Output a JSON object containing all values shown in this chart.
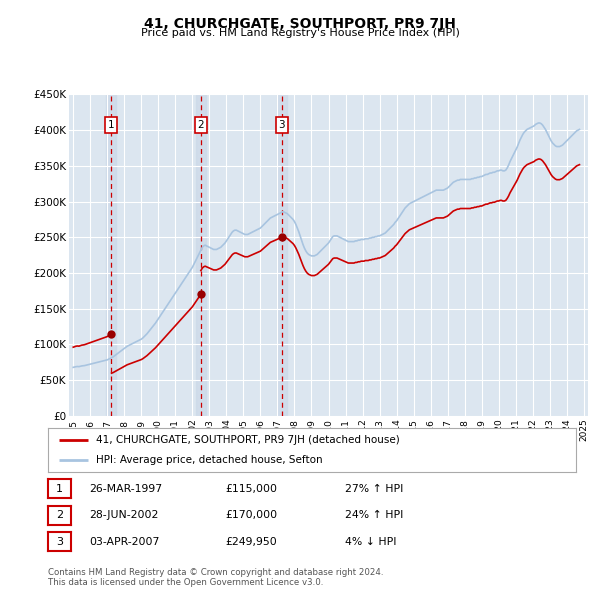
{
  "title": "41, CHURCHGATE, SOUTHPORT, PR9 7JH",
  "subtitle": "Price paid vs. HM Land Registry's House Price Index (HPI)",
  "background_color": "#ffffff",
  "plot_bg_color": "#dce6f0",
  "grid_color": "#ffffff",
  "hpi_line_color": "#a8c4e0",
  "price_line_color": "#cc0000",
  "sale_dot_color": "#990000",
  "sale_vline_color": "#cc0000",
  "sale_highlight_bg": "#ccd9e8",
  "ylim": [
    0,
    450000
  ],
  "yticks": [
    0,
    50000,
    100000,
    150000,
    200000,
    250000,
    300000,
    350000,
    400000,
    450000
  ],
  "ytick_labels": [
    "£0",
    "£50K",
    "£100K",
    "£150K",
    "£200K",
    "£250K",
    "£300K",
    "£350K",
    "£400K",
    "£450K"
  ],
  "xlim_start": 1994.75,
  "xlim_end": 2025.25,
  "xticks": [
    1995,
    1996,
    1997,
    1998,
    1999,
    2000,
    2001,
    2002,
    2003,
    2004,
    2005,
    2006,
    2007,
    2008,
    2009,
    2010,
    2011,
    2012,
    2013,
    2014,
    2015,
    2016,
    2017,
    2018,
    2019,
    2020,
    2021,
    2022,
    2023,
    2024,
    2025
  ],
  "sales": [
    {
      "label": "1",
      "date": 1997.23,
      "price": 115000
    },
    {
      "label": "2",
      "date": 2002.49,
      "price": 170000
    },
    {
      "label": "3",
      "date": 2007.25,
      "price": 249950
    }
  ],
  "legend_entries": [
    {
      "label": "41, CHURCHGATE, SOUTHPORT, PR9 7JH (detached house)",
      "color": "#cc0000"
    },
    {
      "label": "HPI: Average price, detached house, Sefton",
      "color": "#a8c4e0"
    }
  ],
  "table_rows": [
    {
      "num": "1",
      "date": "26-MAR-1997",
      "price": "£115,000",
      "hpi": "27% ↑ HPI"
    },
    {
      "num": "2",
      "date": "28-JUN-2002",
      "price": "£170,000",
      "hpi": "24% ↑ HPI"
    },
    {
      "num": "3",
      "date": "03-APR-2007",
      "price": "£249,950",
      "hpi": "4% ↓ HPI"
    }
  ],
  "footnote": "Contains HM Land Registry data © Crown copyright and database right 2024.\nThis data is licensed under the Open Government Licence v3.0.",
  "hpi_data_monthly": [
    [
      1995,
      1,
      68000
    ],
    [
      1995,
      2,
      68500
    ],
    [
      1995,
      3,
      69000
    ],
    [
      1995,
      4,
      69200
    ],
    [
      1995,
      5,
      69000
    ],
    [
      1995,
      6,
      69500
    ],
    [
      1995,
      7,
      70000
    ],
    [
      1995,
      8,
      70200
    ],
    [
      1995,
      9,
      70500
    ],
    [
      1995,
      10,
      71000
    ],
    [
      1995,
      11,
      71500
    ],
    [
      1995,
      12,
      72000
    ],
    [
      1996,
      1,
      72500
    ],
    [
      1996,
      2,
      73000
    ],
    [
      1996,
      3,
      73500
    ],
    [
      1996,
      4,
      74000
    ],
    [
      1996,
      5,
      74500
    ],
    [
      1996,
      6,
      75000
    ],
    [
      1996,
      7,
      75500
    ],
    [
      1996,
      8,
      76000
    ],
    [
      1996,
      9,
      76500
    ],
    [
      1996,
      10,
      77000
    ],
    [
      1996,
      11,
      77500
    ],
    [
      1996,
      12,
      78000
    ],
    [
      1997,
      1,
      78500
    ],
    [
      1997,
      2,
      79500
    ],
    [
      1997,
      3,
      80500
    ],
    [
      1997,
      4,
      81500
    ],
    [
      1997,
      5,
      82500
    ],
    [
      1997,
      6,
      84000
    ],
    [
      1997,
      7,
      85500
    ],
    [
      1997,
      8,
      87000
    ],
    [
      1997,
      9,
      88500
    ],
    [
      1997,
      10,
      90000
    ],
    [
      1997,
      11,
      91500
    ],
    [
      1997,
      12,
      93000
    ],
    [
      1998,
      1,
      94500
    ],
    [
      1998,
      2,
      96000
    ],
    [
      1998,
      3,
      97500
    ],
    [
      1998,
      4,
      98500
    ],
    [
      1998,
      5,
      99500
    ],
    [
      1998,
      6,
      100500
    ],
    [
      1998,
      7,
      101500
    ],
    [
      1998,
      8,
      102500
    ],
    [
      1998,
      9,
      103500
    ],
    [
      1998,
      10,
      104500
    ],
    [
      1998,
      11,
      105500
    ],
    [
      1998,
      12,
      106500
    ],
    [
      1999,
      1,
      107500
    ],
    [
      1999,
      2,
      109000
    ],
    [
      1999,
      3,
      111000
    ],
    [
      1999,
      4,
      113000
    ],
    [
      1999,
      5,
      115000
    ],
    [
      1999,
      6,
      117500
    ],
    [
      1999,
      7,
      120000
    ],
    [
      1999,
      8,
      122500
    ],
    [
      1999,
      9,
      125000
    ],
    [
      1999,
      10,
      127500
    ],
    [
      1999,
      11,
      130000
    ],
    [
      1999,
      12,
      133000
    ],
    [
      2000,
      1,
      136000
    ],
    [
      2000,
      2,
      139000
    ],
    [
      2000,
      3,
      142000
    ],
    [
      2000,
      4,
      145000
    ],
    [
      2000,
      5,
      148000
    ],
    [
      2000,
      6,
      151000
    ],
    [
      2000,
      7,
      154000
    ],
    [
      2000,
      8,
      157000
    ],
    [
      2000,
      9,
      160000
    ],
    [
      2000,
      10,
      163000
    ],
    [
      2000,
      11,
      166000
    ],
    [
      2000,
      12,
      169000
    ],
    [
      2001,
      1,
      172000
    ],
    [
      2001,
      2,
      175000
    ],
    [
      2001,
      3,
      178000
    ],
    [
      2001,
      4,
      181000
    ],
    [
      2001,
      5,
      184000
    ],
    [
      2001,
      6,
      187000
    ],
    [
      2001,
      7,
      190000
    ],
    [
      2001,
      8,
      193000
    ],
    [
      2001,
      9,
      196000
    ],
    [
      2001,
      10,
      199000
    ],
    [
      2001,
      11,
      202000
    ],
    [
      2001,
      12,
      205000
    ],
    [
      2002,
      1,
      208000
    ],
    [
      2002,
      2,
      212000
    ],
    [
      2002,
      3,
      216000
    ],
    [
      2002,
      4,
      220000
    ],
    [
      2002,
      5,
      224000
    ],
    [
      2002,
      6,
      228000
    ],
    [
      2002,
      7,
      232000
    ],
    [
      2002,
      8,
      236000
    ],
    [
      2002,
      9,
      238000
    ],
    [
      2002,
      10,
      239000
    ],
    [
      2002,
      11,
      238000
    ],
    [
      2002,
      12,
      237000
    ],
    [
      2003,
      1,
      236000
    ],
    [
      2003,
      2,
      235000
    ],
    [
      2003,
      3,
      234000
    ],
    [
      2003,
      4,
      233000
    ],
    [
      2003,
      5,
      233000
    ],
    [
      2003,
      6,
      233000
    ],
    [
      2003,
      7,
      234000
    ],
    [
      2003,
      8,
      235000
    ],
    [
      2003,
      9,
      236000
    ],
    [
      2003,
      10,
      238000
    ],
    [
      2003,
      11,
      240000
    ],
    [
      2003,
      12,
      242000
    ],
    [
      2004,
      1,
      245000
    ],
    [
      2004,
      2,
      248000
    ],
    [
      2004,
      3,
      251000
    ],
    [
      2004,
      4,
      254000
    ],
    [
      2004,
      5,
      257000
    ],
    [
      2004,
      6,
      259000
    ],
    [
      2004,
      7,
      260000
    ],
    [
      2004,
      8,
      260000
    ],
    [
      2004,
      9,
      259000
    ],
    [
      2004,
      10,
      258000
    ],
    [
      2004,
      11,
      257000
    ],
    [
      2004,
      12,
      256000
    ],
    [
      2005,
      1,
      255000
    ],
    [
      2005,
      2,
      254000
    ],
    [
      2005,
      3,
      254000
    ],
    [
      2005,
      4,
      254000
    ],
    [
      2005,
      5,
      255000
    ],
    [
      2005,
      6,
      256000
    ],
    [
      2005,
      7,
      257000
    ],
    [
      2005,
      8,
      258000
    ],
    [
      2005,
      9,
      259000
    ],
    [
      2005,
      10,
      260000
    ],
    [
      2005,
      11,
      261000
    ],
    [
      2005,
      12,
      262000
    ],
    [
      2006,
      1,
      263000
    ],
    [
      2006,
      2,
      265000
    ],
    [
      2006,
      3,
      267000
    ],
    [
      2006,
      4,
      269000
    ],
    [
      2006,
      5,
      271000
    ],
    [
      2006,
      6,
      273000
    ],
    [
      2006,
      7,
      275000
    ],
    [
      2006,
      8,
      277000
    ],
    [
      2006,
      9,
      278000
    ],
    [
      2006,
      10,
      279000
    ],
    [
      2006,
      11,
      280000
    ],
    [
      2006,
      12,
      281000
    ],
    [
      2007,
      1,
      282000
    ],
    [
      2007,
      2,
      283000
    ],
    [
      2007,
      3,
      284000
    ],
    [
      2007,
      4,
      285000
    ],
    [
      2007,
      5,
      286000
    ],
    [
      2007,
      6,
      285000
    ],
    [
      2007,
      7,
      284000
    ],
    [
      2007,
      8,
      283000
    ],
    [
      2007,
      9,
      281000
    ],
    [
      2007,
      10,
      279000
    ],
    [
      2007,
      11,
      277000
    ],
    [
      2007,
      12,
      275000
    ],
    [
      2008,
      1,
      272000
    ],
    [
      2008,
      2,
      268000
    ],
    [
      2008,
      3,
      263000
    ],
    [
      2008,
      4,
      258000
    ],
    [
      2008,
      5,
      252000
    ],
    [
      2008,
      6,
      246000
    ],
    [
      2008,
      7,
      240000
    ],
    [
      2008,
      8,
      235000
    ],
    [
      2008,
      9,
      231000
    ],
    [
      2008,
      10,
      228000
    ],
    [
      2008,
      11,
      226000
    ],
    [
      2008,
      12,
      225000
    ],
    [
      2009,
      1,
      224000
    ],
    [
      2009,
      2,
      224000
    ],
    [
      2009,
      3,
      224000
    ],
    [
      2009,
      4,
      225000
    ],
    [
      2009,
      5,
      226000
    ],
    [
      2009,
      6,
      228000
    ],
    [
      2009,
      7,
      230000
    ],
    [
      2009,
      8,
      232000
    ],
    [
      2009,
      9,
      234000
    ],
    [
      2009,
      10,
      236000
    ],
    [
      2009,
      11,
      238000
    ],
    [
      2009,
      12,
      240000
    ],
    [
      2010,
      1,
      242000
    ],
    [
      2010,
      2,
      245000
    ],
    [
      2010,
      3,
      248000
    ],
    [
      2010,
      4,
      251000
    ],
    [
      2010,
      5,
      252000
    ],
    [
      2010,
      6,
      252000
    ],
    [
      2010,
      7,
      252000
    ],
    [
      2010,
      8,
      251000
    ],
    [
      2010,
      9,
      250000
    ],
    [
      2010,
      10,
      249000
    ],
    [
      2010,
      11,
      248000
    ],
    [
      2010,
      12,
      247000
    ],
    [
      2011,
      1,
      246000
    ],
    [
      2011,
      2,
      245000
    ],
    [
      2011,
      3,
      244000
    ],
    [
      2011,
      4,
      244000
    ],
    [
      2011,
      5,
      244000
    ],
    [
      2011,
      6,
      244000
    ],
    [
      2011,
      7,
      244000
    ],
    [
      2011,
      8,
      245000
    ],
    [
      2011,
      9,
      245000
    ],
    [
      2011,
      10,
      246000
    ],
    [
      2011,
      11,
      246000
    ],
    [
      2011,
      12,
      247000
    ],
    [
      2012,
      1,
      247000
    ],
    [
      2012,
      2,
      247000
    ],
    [
      2012,
      3,
      248000
    ],
    [
      2012,
      4,
      248000
    ],
    [
      2012,
      5,
      248000
    ],
    [
      2012,
      6,
      249000
    ],
    [
      2012,
      7,
      249000
    ],
    [
      2012,
      8,
      250000
    ],
    [
      2012,
      9,
      250000
    ],
    [
      2012,
      10,
      251000
    ],
    [
      2012,
      11,
      251000
    ],
    [
      2012,
      12,
      252000
    ],
    [
      2013,
      1,
      252000
    ],
    [
      2013,
      2,
      253000
    ],
    [
      2013,
      3,
      254000
    ],
    [
      2013,
      4,
      255000
    ],
    [
      2013,
      5,
      256000
    ],
    [
      2013,
      6,
      258000
    ],
    [
      2013,
      7,
      260000
    ],
    [
      2013,
      8,
      262000
    ],
    [
      2013,
      9,
      264000
    ],
    [
      2013,
      10,
      266000
    ],
    [
      2013,
      11,
      268000
    ],
    [
      2013,
      12,
      271000
    ],
    [
      2014,
      1,
      273000
    ],
    [
      2014,
      2,
      276000
    ],
    [
      2014,
      3,
      279000
    ],
    [
      2014,
      4,
      282000
    ],
    [
      2014,
      5,
      285000
    ],
    [
      2014,
      6,
      288000
    ],
    [
      2014,
      7,
      291000
    ],
    [
      2014,
      8,
      293000
    ],
    [
      2014,
      9,
      295000
    ],
    [
      2014,
      10,
      297000
    ],
    [
      2014,
      11,
      298000
    ],
    [
      2014,
      12,
      299000
    ],
    [
      2015,
      1,
      300000
    ],
    [
      2015,
      2,
      301000
    ],
    [
      2015,
      3,
      302000
    ],
    [
      2015,
      4,
      303000
    ],
    [
      2015,
      5,
      304000
    ],
    [
      2015,
      6,
      305000
    ],
    [
      2015,
      7,
      306000
    ],
    [
      2015,
      8,
      307000
    ],
    [
      2015,
      9,
      308000
    ],
    [
      2015,
      10,
      309000
    ],
    [
      2015,
      11,
      310000
    ],
    [
      2015,
      12,
      311000
    ],
    [
      2016,
      1,
      312000
    ],
    [
      2016,
      2,
      313000
    ],
    [
      2016,
      3,
      314000
    ],
    [
      2016,
      4,
      315000
    ],
    [
      2016,
      5,
      316000
    ],
    [
      2016,
      6,
      316000
    ],
    [
      2016,
      7,
      316000
    ],
    [
      2016,
      8,
      316000
    ],
    [
      2016,
      9,
      316000
    ],
    [
      2016,
      10,
      316000
    ],
    [
      2016,
      11,
      317000
    ],
    [
      2016,
      12,
      318000
    ],
    [
      2017,
      1,
      319000
    ],
    [
      2017,
      2,
      321000
    ],
    [
      2017,
      3,
      323000
    ],
    [
      2017,
      4,
      325000
    ],
    [
      2017,
      5,
      327000
    ],
    [
      2017,
      6,
      328000
    ],
    [
      2017,
      7,
      329000
    ],
    [
      2017,
      8,
      330000
    ],
    [
      2017,
      9,
      330000
    ],
    [
      2017,
      10,
      331000
    ],
    [
      2017,
      11,
      331000
    ],
    [
      2017,
      12,
      331000
    ],
    [
      2018,
      1,
      331000
    ],
    [
      2018,
      2,
      331000
    ],
    [
      2018,
      3,
      331000
    ],
    [
      2018,
      4,
      331000
    ],
    [
      2018,
      5,
      331000
    ],
    [
      2018,
      6,
      332000
    ],
    [
      2018,
      7,
      332000
    ],
    [
      2018,
      8,
      333000
    ],
    [
      2018,
      9,
      333000
    ],
    [
      2018,
      10,
      334000
    ],
    [
      2018,
      11,
      334000
    ],
    [
      2018,
      12,
      335000
    ],
    [
      2019,
      1,
      335000
    ],
    [
      2019,
      2,
      336000
    ],
    [
      2019,
      3,
      337000
    ],
    [
      2019,
      4,
      338000
    ],
    [
      2019,
      5,
      338000
    ],
    [
      2019,
      6,
      339000
    ],
    [
      2019,
      7,
      340000
    ],
    [
      2019,
      8,
      340000
    ],
    [
      2019,
      9,
      341000
    ],
    [
      2019,
      10,
      341000
    ],
    [
      2019,
      11,
      342000
    ],
    [
      2019,
      12,
      343000
    ],
    [
      2020,
      1,
      343000
    ],
    [
      2020,
      2,
      344000
    ],
    [
      2020,
      3,
      344000
    ],
    [
      2020,
      4,
      343000
    ],
    [
      2020,
      5,
      343000
    ],
    [
      2020,
      6,
      344000
    ],
    [
      2020,
      7,
      347000
    ],
    [
      2020,
      8,
      351000
    ],
    [
      2020,
      9,
      356000
    ],
    [
      2020,
      10,
      360000
    ],
    [
      2020,
      11,
      364000
    ],
    [
      2020,
      12,
      368000
    ],
    [
      2021,
      1,
      372000
    ],
    [
      2021,
      2,
      376000
    ],
    [
      2021,
      3,
      381000
    ],
    [
      2021,
      4,
      386000
    ],
    [
      2021,
      5,
      390000
    ],
    [
      2021,
      6,
      394000
    ],
    [
      2021,
      7,
      397000
    ],
    [
      2021,
      8,
      399000
    ],
    [
      2021,
      9,
      401000
    ],
    [
      2021,
      10,
      402000
    ],
    [
      2021,
      11,
      403000
    ],
    [
      2021,
      12,
      404000
    ],
    [
      2022,
      1,
      405000
    ],
    [
      2022,
      2,
      406000
    ],
    [
      2022,
      3,
      408000
    ],
    [
      2022,
      4,
      409000
    ],
    [
      2022,
      5,
      410000
    ],
    [
      2022,
      6,
      410000
    ],
    [
      2022,
      7,
      409000
    ],
    [
      2022,
      8,
      407000
    ],
    [
      2022,
      9,
      404000
    ],
    [
      2022,
      10,
      401000
    ],
    [
      2022,
      11,
      397000
    ],
    [
      2022,
      12,
      393000
    ],
    [
      2023,
      1,
      389000
    ],
    [
      2023,
      2,
      385000
    ],
    [
      2023,
      3,
      382000
    ],
    [
      2023,
      4,
      380000
    ],
    [
      2023,
      5,
      378000
    ],
    [
      2023,
      6,
      377000
    ],
    [
      2023,
      7,
      377000
    ],
    [
      2023,
      8,
      377000
    ],
    [
      2023,
      9,
      378000
    ],
    [
      2023,
      10,
      379000
    ],
    [
      2023,
      11,
      381000
    ],
    [
      2023,
      12,
      383000
    ],
    [
      2024,
      1,
      385000
    ],
    [
      2024,
      2,
      387000
    ],
    [
      2024,
      3,
      389000
    ],
    [
      2024,
      4,
      391000
    ],
    [
      2024,
      5,
      393000
    ],
    [
      2024,
      6,
      395000
    ],
    [
      2024,
      7,
      397000
    ],
    [
      2024,
      8,
      399000
    ],
    [
      2024,
      9,
      400000
    ],
    [
      2024,
      10,
      401000
    ]
  ]
}
